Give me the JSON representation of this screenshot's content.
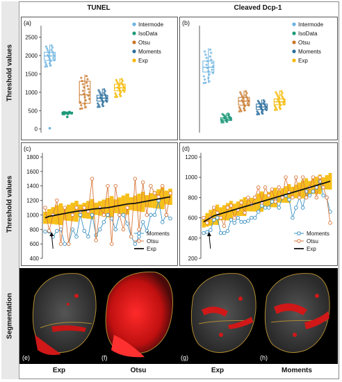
{
  "columns": {
    "left": "TUNEL",
    "right": "Cleaved Dcp-1"
  },
  "row_labels": {
    "threshold_top": "Threshold values",
    "threshold_mid": "Threshold values",
    "segmentation": "Segmentation"
  },
  "footer": [
    "Exp",
    "Otsu",
    "Exp",
    "Moments"
  ],
  "segmentation_labels": [
    "(e)",
    "(f)",
    "(g)",
    "(h)"
  ],
  "colors": {
    "Intermode": "#6bb3e0",
    "IsoData": "#1e9a7a",
    "Otsu": "#c8772a",
    "Moments": "#2a6e9e",
    "Exp": "#f5b800",
    "line_moments": "#3a8fc0",
    "line_otsu": "#d9773a",
    "line_exp": "#111111"
  },
  "chart_data": [
    {
      "panel": "(a)",
      "type": "box",
      "ylabel": "Threshold values",
      "categories": [
        "Intermode",
        "IsoData",
        "Otsu",
        "Moments",
        "Exp"
      ],
      "ylim": [
        -100,
        2700
      ],
      "yticks": [
        0,
        500,
        1000,
        1500,
        2000,
        2500
      ],
      "series": [
        {
          "name": "Intermode",
          "q1": 1870,
          "median": 1990,
          "q3": 2090,
          "whisker_low": 1700,
          "whisker_high": 2300,
          "outliers": [
            20
          ]
        },
        {
          "name": "IsoData",
          "q1": 420,
          "median": 440,
          "q3": 460,
          "whisker_low": 400,
          "whisker_high": 470,
          "outliers": [
            330
          ]
        },
        {
          "name": "Otsu",
          "q1": 700,
          "median": 930,
          "q3": 1300,
          "whisker_low": 550,
          "whisker_high": 1480,
          "outliers": []
        },
        {
          "name": "Moments",
          "q1": 760,
          "median": 840,
          "q3": 920,
          "whisker_low": 600,
          "whisker_high": 1100,
          "outliers": []
        },
        {
          "name": "Exp",
          "q1": 1040,
          "median": 1120,
          "q3": 1220,
          "whisker_low": 870,
          "whisker_high": 1380,
          "outliers": []
        }
      ],
      "legend": [
        "Intermode",
        "IsoData",
        "Otsu",
        "Moments",
        "Exp"
      ],
      "legend_position": "top-right"
    },
    {
      "panel": "(b)",
      "type": "box",
      "ylabel": "",
      "categories": [
        "Intermode",
        "IsoData",
        "Otsu",
        "Moments",
        "Exp"
      ],
      "ylim": [
        -100,
        2700
      ],
      "yticks": [],
      "series": [
        {
          "name": "Intermode",
          "q1": 1550,
          "median": 1680,
          "q3": 1850,
          "whisker_low": 1250,
          "whisker_high": 2200,
          "outliers": []
        },
        {
          "name": "IsoData",
          "q1": 230,
          "median": 270,
          "q3": 310,
          "whisker_low": 180,
          "whisker_high": 430,
          "outliers": []
        },
        {
          "name": "Otsu",
          "q1": 650,
          "median": 760,
          "q3": 860,
          "whisker_low": 480,
          "whisker_high": 1050,
          "outliers": []
        },
        {
          "name": "Moments",
          "q1": 530,
          "median": 600,
          "q3": 680,
          "whisker_low": 400,
          "whisker_high": 800,
          "outliers": []
        },
        {
          "name": "Exp",
          "q1": 660,
          "median": 740,
          "q3": 820,
          "whisker_low": 520,
          "whisker_high": 1050,
          "outliers": []
        }
      ],
      "legend": [
        "Intermode",
        "IsoData",
        "Otsu",
        "Moments",
        "Exp"
      ],
      "legend_position": "top-right"
    },
    {
      "panel": "(c)",
      "type": "line",
      "ylabel": "Threshold values",
      "ylim": [
        400,
        1800
      ],
      "yticks": [
        400,
        600,
        800,
        1000,
        1200,
        1400,
        1600,
        1800
      ],
      "n_points": 33,
      "series": [
        {
          "name": "Moments",
          "values": [
            770,
            770,
            700,
            780,
            800,
            600,
            600,
            800,
            700,
            1000,
            780,
            700,
            1000,
            720,
            800,
            900,
            1000,
            950,
            800,
            1000,
            1000,
            880,
            700,
            600,
            700,
            900,
            780,
            1000,
            1000,
            1200,
            900,
            1000,
            950
          ]
        },
        {
          "name": "Otsu",
          "values": [
            1100,
            780,
            1000,
            1200,
            600,
            1100,
            600,
            1000,
            1100,
            1050,
            1100,
            1050,
            1500,
            650,
            1100,
            1000,
            1400,
            600,
            1400,
            1000,
            800,
            1100,
            700,
            1500,
            800,
            1450,
            1000,
            1400,
            1300,
            1250,
            1400,
            1000,
            1300
          ]
        },
        {
          "name": "Exp",
          "values": [
            960,
            980,
            990,
            1000,
            1010,
            1020,
            1030,
            1040,
            1050,
            1055,
            1060,
            1070,
            1080,
            1085,
            1090,
            1095,
            1100,
            1110,
            1120,
            1130,
            1140,
            1150,
            1155,
            1160,
            1170,
            1180,
            1190,
            1200,
            1210,
            1220,
            1230,
            1240,
            1250
          ]
        }
      ],
      "band_half_width": 120,
      "annotation": "arrow",
      "legend": [
        "Moments",
        "Otsu",
        "Exp"
      ],
      "legend_position": "bottom-right"
    },
    {
      "panel": "(d)",
      "type": "line",
      "ylabel": "",
      "ylim": [
        200,
        1200
      ],
      "yticks": [
        200,
        400,
        600,
        800,
        1000,
        1200
      ],
      "n_points": 38,
      "series": [
        {
          "name": "Moments",
          "values": [
            450,
            460,
            480,
            580,
            600,
            450,
            450,
            470,
            580,
            550,
            600,
            560,
            560,
            570,
            600,
            600,
            660,
            720,
            700,
            700,
            760,
            780,
            700,
            800,
            820,
            780,
            600,
            700,
            800,
            700,
            860,
            820,
            860,
            900,
            960,
            820,
            800,
            660
          ]
        },
        {
          "name": "Otsu",
          "values": [
            600,
            550,
            600,
            700,
            650,
            600,
            520,
            700,
            720,
            600,
            680,
            750,
            650,
            800,
            730,
            800,
            900,
            750,
            900,
            820,
            880,
            760,
            900,
            800,
            1000,
            850,
            800,
            1000,
            800,
            1000,
            800,
            900,
            1000,
            800,
            1000,
            900,
            800,
            550
          ]
        },
        {
          "name": "Exp",
          "values": [
            560,
            580,
            600,
            620,
            630,
            640,
            650,
            660,
            670,
            680,
            690,
            700,
            710,
            720,
            730,
            740,
            750,
            760,
            770,
            780,
            790,
            800,
            810,
            820,
            830,
            840,
            850,
            860,
            870,
            880,
            890,
            900,
            910,
            920,
            930,
            940,
            950,
            960
          ]
        }
      ],
      "band_half_width": 80,
      "annotation": "arrow",
      "legend": [
        "Moments",
        "Otsu",
        "Exp"
      ],
      "legend_position": "bottom-right"
    }
  ]
}
